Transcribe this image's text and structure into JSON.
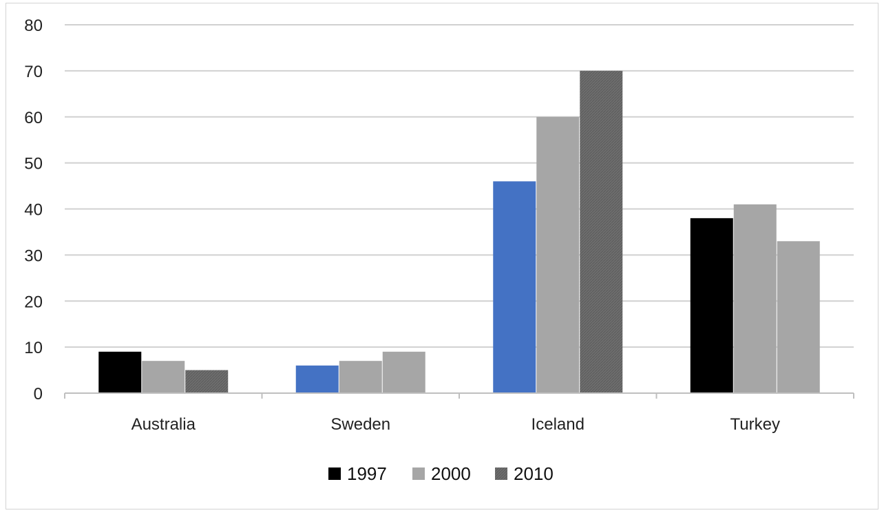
{
  "chart_data": {
    "type": "bar",
    "categories": [
      "Australia",
      "Sweden",
      "Iceland",
      "Turkey"
    ],
    "series": [
      {
        "name": "1997",
        "values": [
          9,
          6,
          46,
          38
        ],
        "color": "#000000",
        "bar_colors": [
          "#000000",
          "#4472c4",
          "#4472c4",
          "#000000"
        ]
      },
      {
        "name": "2000",
        "values": [
          7,
          7,
          60,
          41
        ],
        "color": "#a6a6a6",
        "bar_colors": [
          "#a6a6a6",
          "#a6a6a6",
          "#a6a6a6",
          "#a6a6a6"
        ]
      },
      {
        "name": "2010",
        "values": [
          5,
          9,
          70,
          33
        ],
        "color": "#6e6e6e",
        "bar_colors": [
          "#6e6e6e",
          "#a6a6a6",
          "#6e6e6e",
          "#a6a6a6"
        ]
      }
    ],
    "ylim": [
      0,
      80
    ],
    "yticks": [
      "0",
      "10",
      "20",
      "30",
      "40",
      "50",
      "60",
      "70",
      "80"
    ],
    "grid": true,
    "legend_position": "bottom",
    "title": "",
    "xlabel": "",
    "ylabel": ""
  }
}
